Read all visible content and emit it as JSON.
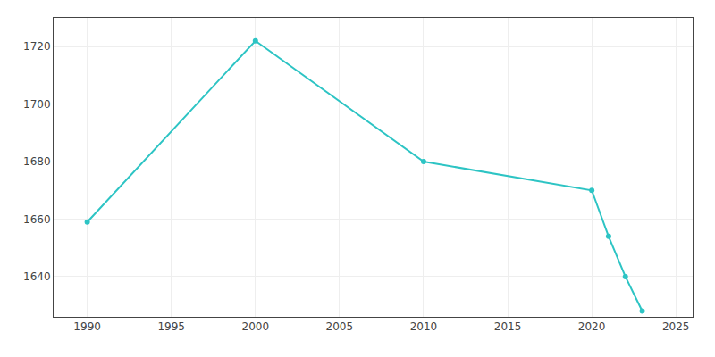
{
  "chart_data": {
    "type": "line",
    "x": [
      1990,
      2000,
      2010,
      2020,
      2021,
      2022,
      2023
    ],
    "values": [
      1659,
      1722,
      1680,
      1670,
      1654,
      1640,
      1628
    ],
    "color": "#2dc4c4",
    "marker": "circle",
    "xlim": [
      1988,
      2026
    ],
    "ylim": [
      1626,
      1730
    ],
    "xticks": [
      1990,
      1995,
      2000,
      2005,
      2010,
      2015,
      2020,
      2025
    ],
    "yticks": [
      1640,
      1660,
      1680,
      1700,
      1720
    ],
    "grid": true
  }
}
